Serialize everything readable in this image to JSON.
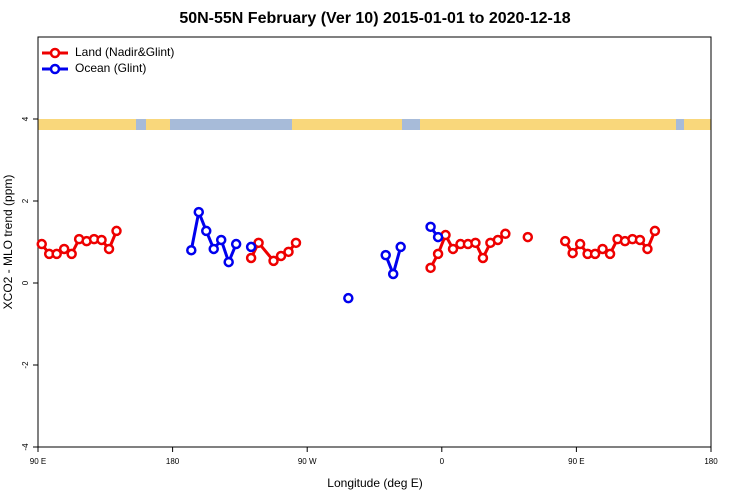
{
  "chart_data": {
    "type": "line",
    "title": "50N-55N February (Ver 10)   2015-01-01 to 2020-12-18",
    "x_label": "Longitude (deg E)",
    "y_label": "XCO2 - MLO trend (ppm)",
    "xlim": [
      90,
      540
    ],
    "ylim": [
      -4,
      6
    ],
    "xticks": [
      {
        "value": 90,
        "label": "90 E"
      },
      180,
      {
        "value": 270,
        "label": "90 W"
      },
      {
        "value": 360,
        "label": "0"
      },
      {
        "value": 450,
        "label": "90 E"
      },
      {
        "value": 540,
        "label": "180"
      }
    ],
    "yticks": [
      -4,
      -2,
      0,
      2,
      4
    ],
    "legend": "upper left",
    "series": [
      {
        "name": "Land (Nadir&Glint)",
        "color": "#ee0000",
        "x": [
          92.5,
          97.5,
          102.5,
          107.5,
          112.5,
          117.5,
          122.5,
          127.5,
          132.5,
          137.5,
          142.5,
          147.5,
          232.5,
          237.5,
          247.5,
          252.5,
          257.5,
          262.5,
          267.5,
          352.5,
          357.5,
          362.5,
          367.5,
          372.5,
          377.5,
          382.5,
          387.5,
          392.5,
          397.5,
          402.5,
          407.5,
          417.5,
          422.5,
          442.5,
          447.5,
          452.5,
          457.5,
          462.5,
          467.5,
          472.5,
          477.5,
          482.5,
          487.5,
          492.5,
          497.5,
          502.5
        ],
        "values": [
          0.95,
          0.71,
          0.71,
          0.83,
          0.71,
          1.07,
          1.02,
          1.07,
          1.05,
          0.83,
          1.27,
          null,
          0.61,
          0.98,
          0.54,
          0.66,
          0.76,
          0.98,
          null,
          0.37,
          0.71,
          1.17,
          0.83,
          0.95,
          0.95,
          0.98,
          0.61,
          0.98,
          1.05,
          1.2,
          null,
          1.12,
          null,
          1.02,
          0.73,
          0.95,
          0.71,
          0.71,
          0.83,
          0.71,
          1.07,
          1.02,
          1.07,
          1.05,
          0.83,
          1.27
        ]
      },
      {
        "name": "Ocean (Glint)",
        "color": "#0000ee",
        "x": [
          192.5,
          197.5,
          202.5,
          207.5,
          212.5,
          217.5,
          222.5,
          227.5,
          232.5,
          237.5,
          297.5,
          302.5,
          322.5,
          327.5,
          332.5,
          337.5,
          352.5,
          357.5
        ],
        "values": [
          0.8,
          1.73,
          1.27,
          0.83,
          1.05,
          0.51,
          0.95,
          null,
          0.88,
          null,
          -0.37,
          null,
          0.68,
          0.22,
          0.88,
          null,
          1.37,
          1.12
        ]
      }
    ]
  }
}
